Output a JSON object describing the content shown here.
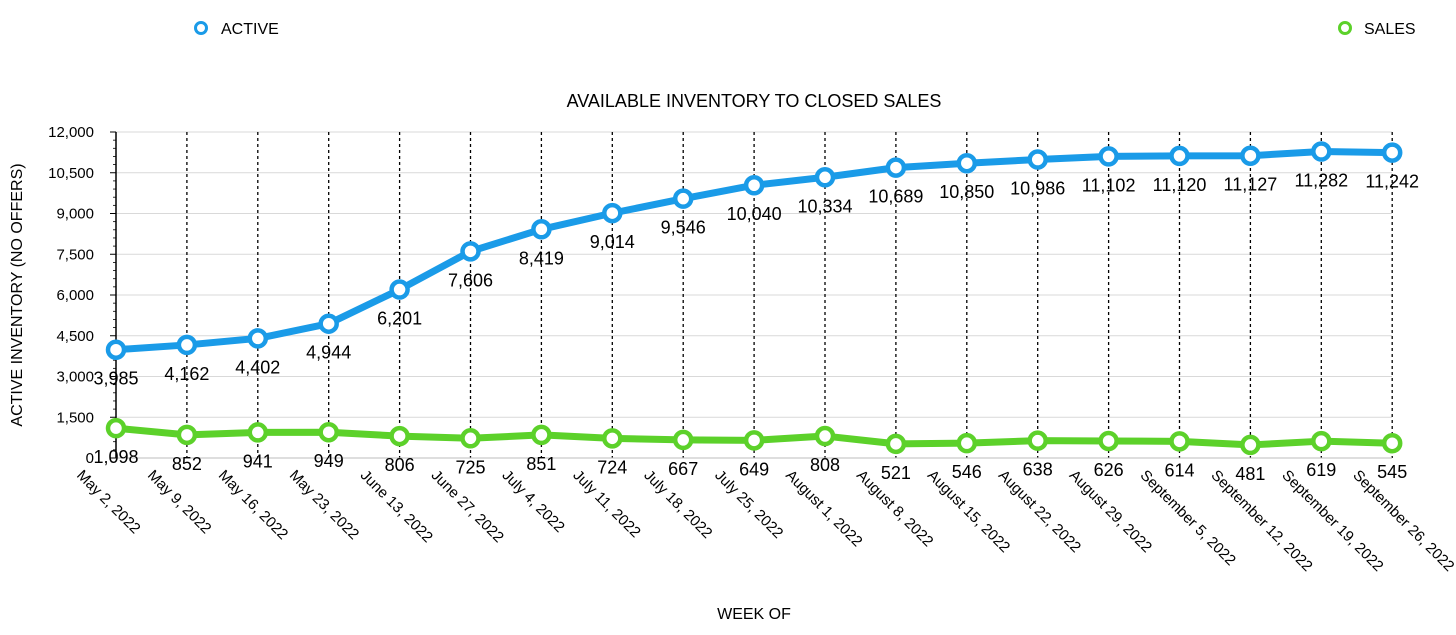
{
  "chart_data": {
    "type": "line",
    "title": "AVAILABLE INVENTORY TO CLOSED SALES",
    "xlabel": "WEEK OF",
    "ylabel": "ACTIVE INVENTORY (NO OFFERS)",
    "ylim": [
      0,
      12000
    ],
    "yticks": [
      0,
      1500,
      3000,
      4500,
      6000,
      7500,
      9000,
      10500,
      12000
    ],
    "ytick_labels": [
      "0",
      "1,500",
      "3,000",
      "4,500",
      "6,000",
      "7,500",
      "9,000",
      "10,500",
      "12,000"
    ],
    "grid": true,
    "legend_position": "top",
    "categories": [
      "May 2, 2022",
      "May 9, 2022",
      "May 16, 2022",
      "May 23, 2022",
      "June 13, 2022",
      "June 27, 2022",
      "July 4, 2022",
      "July 11, 2022",
      "July 18, 2022",
      "July 25, 2022",
      "August 1, 2022",
      "August 8, 2022",
      "August 15, 2022",
      "August 22, 2022",
      "August 29, 2022",
      "September 5, 2022",
      "September 12, 2022",
      "September 19, 2022",
      "September 26, 2022"
    ],
    "series": [
      {
        "name": "ACTIVE",
        "color": "#1a9be8",
        "values": [
          3985,
          4162,
          4402,
          4944,
          6201,
          7606,
          8419,
          9014,
          9546,
          10040,
          10334,
          10689,
          10850,
          10986,
          11102,
          11120,
          11127,
          11282,
          11242
        ],
        "labels": [
          "3,985",
          "4,162",
          "4,402",
          "4,944",
          "6,201",
          "7,606",
          "8,419",
          "9,014",
          "9,546",
          "10,040",
          "10,334",
          "10,689",
          "10,850",
          "10,986",
          "11,102",
          "11,120",
          "11,127",
          "11,282",
          "11,242"
        ]
      },
      {
        "name": "SALES",
        "color": "#5cd12a",
        "values": [
          1098,
          852,
          941,
          949,
          806,
          725,
          851,
          724,
          667,
          649,
          808,
          521,
          546,
          638,
          626,
          614,
          481,
          619,
          545
        ],
        "labels": [
          "1,098",
          "852",
          "941",
          "949",
          "806",
          "725",
          "851",
          "724",
          "667",
          "649",
          "808",
          "521",
          "546",
          "638",
          "626",
          "614",
          "481",
          "619",
          "545"
        ]
      }
    ]
  }
}
